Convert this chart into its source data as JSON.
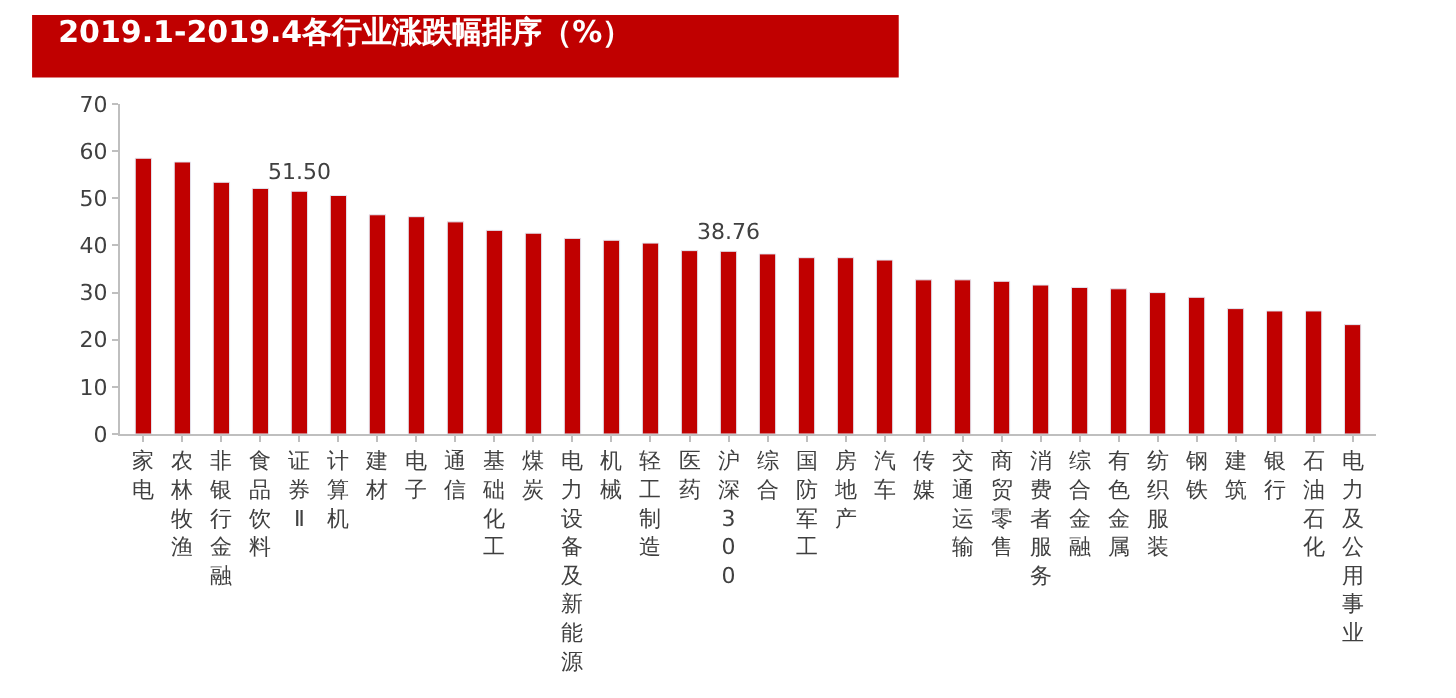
{
  "chart_data": {
    "type": "bar",
    "title": "2019.1-2019.4各行业涨跌幅排序（%）",
    "categories": [
      "家电",
      "农林牧渔",
      "非银行金融",
      "食品饮料",
      "证券Ⅱ",
      "计算机",
      "建材",
      "电子",
      "通信",
      "基础化工",
      "煤炭",
      "电力设备及新能源",
      "机械",
      "轻工制造",
      "医药",
      "沪深300",
      "综合",
      "国防军工",
      "房地产",
      "汽车",
      "传媒",
      "交通运输",
      "商贸零售",
      "消费者服务",
      "综合金融",
      "有色金属",
      "纺织服装",
      "钢铁",
      "建筑",
      "银行",
      "石油石化",
      "电力及公用事业"
    ],
    "values": [
      58.5,
      57.7,
      53.4,
      52.1,
      51.5,
      50.6,
      46.5,
      46.1,
      45.0,
      43.2,
      42.6,
      41.5,
      41.1,
      40.5,
      38.9,
      38.76,
      38.2,
      37.4,
      37.4,
      36.9,
      32.7,
      32.7,
      32.4,
      31.6,
      31.1,
      30.8,
      30.0,
      29.0,
      26.6,
      26.1,
      26.1,
      23.2
    ],
    "value_labels": [
      null,
      null,
      null,
      null,
      "51.50",
      null,
      null,
      null,
      null,
      null,
      null,
      null,
      null,
      null,
      null,
      "38.76",
      null,
      null,
      null,
      null,
      null,
      null,
      null,
      null,
      null,
      null,
      null,
      null,
      null,
      null,
      null,
      null
    ],
    "color": "#c00000",
    "ylim": [
      0,
      70
    ],
    "yticks": [
      0,
      10,
      20,
      30,
      40,
      50,
      60,
      70
    ]
  }
}
